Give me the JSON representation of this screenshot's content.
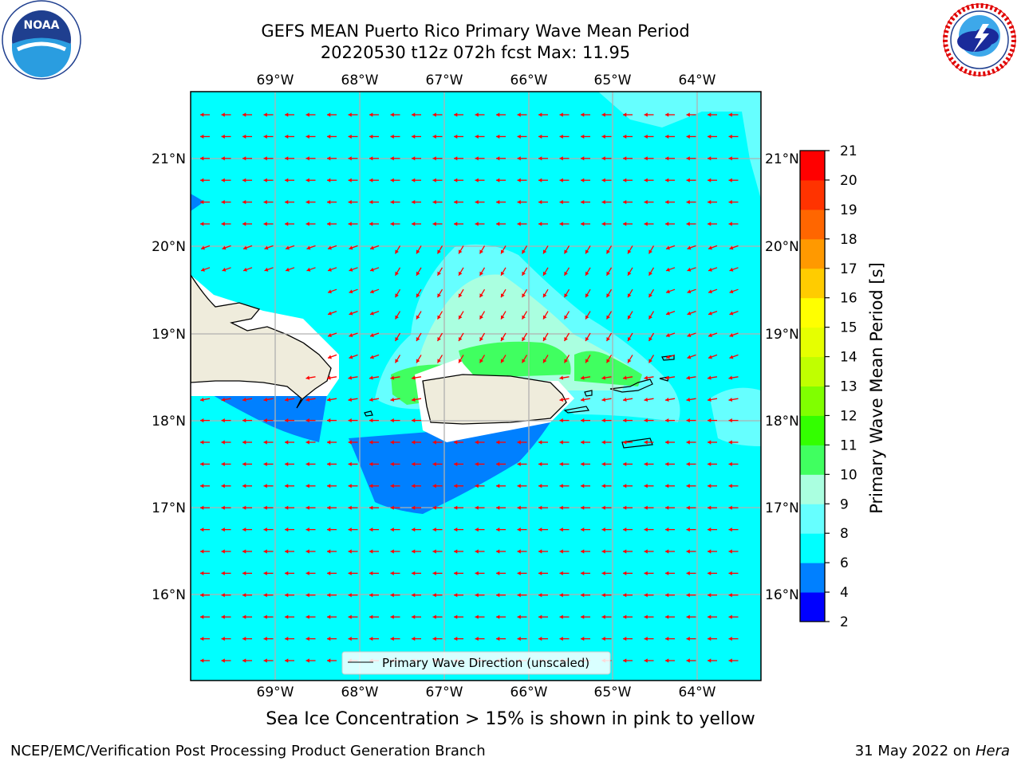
{
  "header": {
    "title_line1": "GEFS MEAN Puerto Rico Primary Wave Mean Period",
    "title_line2": "20220530 t12z 072h fcst   Max: 11.95"
  },
  "logos": {
    "left": {
      "name": "noaa-logo",
      "text": "NOAA",
      "ring_text": "NATIONAL OCEANIC AND ATMOSPHERIC ADMINISTRATION · U.S. DEPARTMENT OF COMMERCE"
    },
    "right": {
      "name": "nws-logo",
      "ring_text": "NATIONAL WEATHER SERVICE"
    }
  },
  "map": {
    "lon_labels": [
      "69°W",
      "68°W",
      "67°W",
      "66°W",
      "65°W",
      "64°W"
    ],
    "lat_labels": [
      "21°N",
      "20°N",
      "19°N",
      "18°N",
      "17°N",
      "16°N"
    ],
    "legend_label": "Primary Wave Direction (unscaled)",
    "arrow_color": "#ff0000",
    "land_color": "#efecdc"
  },
  "colorbar": {
    "label": "Primary Wave Mean Period [s]",
    "ticks": [
      "2",
      "4",
      "6",
      "8",
      "9",
      "10",
      "11",
      "12",
      "13",
      "14",
      "15",
      "16",
      "17",
      "18",
      "19",
      "20",
      "21"
    ],
    "colors": [
      "#0000ff",
      "#0080ff",
      "#00ffff",
      "#66ffff",
      "#aaffe0",
      "#40ff60",
      "#33ff00",
      "#80ff00",
      "#c0ff00",
      "#e6ff00",
      "#ffff00",
      "#ffcc00",
      "#ff9900",
      "#ff6600",
      "#ff3300",
      "#ff0000"
    ]
  },
  "caption": "Sea Ice Concentration > 15% is shown in pink to yellow",
  "footer": {
    "left": "NCEP/EMC/Verification Post Processing Product Generation Branch",
    "date": "31 May 2022 on",
    "machine": "Hera"
  }
}
